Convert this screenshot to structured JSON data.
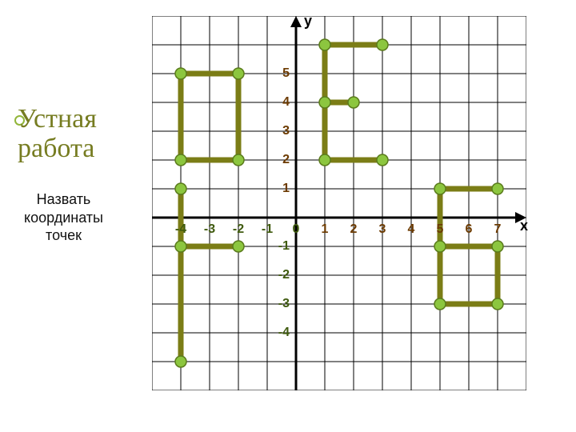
{
  "title_line1": "Устная",
  "title_line2": "работа",
  "subtitle": "Назвать координаты точек",
  "axis_x_label": "х",
  "axis_y_label": "у",
  "colors": {
    "grid_line": "#000000",
    "axis": "#000000",
    "shape_stroke": "#7b7d16",
    "point_fill": "#8cc63f",
    "point_stroke": "#5a7b1b",
    "tick_pos": "#6c3a00",
    "tick_neg": "#3f5a0e",
    "background": "#ffffff"
  },
  "grid": {
    "cell": 36,
    "x_min": -5,
    "x_max": 8,
    "y_min": -6,
    "y_max": 7
  },
  "ticks": {
    "x": [
      {
        "v": -4,
        "label": "-4",
        "color": "neg"
      },
      {
        "v": -3,
        "label": "-3",
        "color": "neg"
      },
      {
        "v": -2,
        "label": "-2",
        "color": "neg"
      },
      {
        "v": -1,
        "label": "-1",
        "color": "neg"
      },
      {
        "v": 0,
        "label": "0",
        "color": "neg"
      },
      {
        "v": 1,
        "label": "1",
        "color": "pos"
      },
      {
        "v": 2,
        "label": "2",
        "color": "pos"
      },
      {
        "v": 3,
        "label": "3",
        "color": "pos"
      },
      {
        "v": 4,
        "label": "4",
        "color": "pos"
      },
      {
        "v": 5,
        "label": "5",
        "color": "pos"
      },
      {
        "v": 6,
        "label": "6",
        "color": "pos"
      },
      {
        "v": 7,
        "label": "7",
        "color": "pos"
      }
    ],
    "y": [
      {
        "v": 1,
        "label": "1",
        "color": "pos"
      },
      {
        "v": 2,
        "label": "2",
        "color": "pos"
      },
      {
        "v": 3,
        "label": "3",
        "color": "pos"
      },
      {
        "v": 4,
        "label": "4",
        "color": "pos"
      },
      {
        "v": 5,
        "label": "5",
        "color": "pos"
      },
      {
        "v": -1,
        "label": "-1",
        "color": "neg"
      },
      {
        "v": -2,
        "label": "-2",
        "color": "neg"
      },
      {
        "v": -3,
        "label": "-3",
        "color": "neg"
      },
      {
        "v": -4,
        "label": "-4",
        "color": "neg"
      }
    ]
  },
  "shapes": [
    {
      "name": "letter-O",
      "closed": true,
      "points": [
        [
          -4,
          5
        ],
        [
          -2,
          5
        ],
        [
          -2,
          2
        ],
        [
          -4,
          2
        ]
      ]
    },
    {
      "name": "letter-E-top",
      "closed": false,
      "points": [
        [
          1,
          6
        ],
        [
          3,
          6
        ]
      ]
    },
    {
      "name": "letter-E-mid",
      "closed": false,
      "points": [
        [
          1,
          4
        ],
        [
          2,
          4
        ]
      ]
    },
    {
      "name": "letter-E-bot",
      "closed": false,
      "points": [
        [
          1,
          2
        ],
        [
          3,
          2
        ]
      ]
    },
    {
      "name": "letter-E-stem",
      "closed": false,
      "points": [
        [
          1,
          6
        ],
        [
          1,
          2
        ]
      ]
    },
    {
      "name": "letter-G",
      "closed": false,
      "points": [
        [
          -2,
          -1
        ],
        [
          -4,
          -1
        ],
        [
          -4,
          1
        ]
      ]
    },
    {
      "name": "letter-G-tail",
      "closed": false,
      "points": [
        [
          -4,
          -1
        ],
        [
          -4,
          -5
        ]
      ]
    },
    {
      "name": "letter-B-top",
      "closed": false,
      "points": [
        [
          7,
          1
        ],
        [
          5,
          1
        ],
        [
          5,
          -3
        ],
        [
          7,
          -3
        ],
        [
          7,
          -1
        ],
        [
          5,
          -1
        ]
      ]
    }
  ],
  "extra_points": [
    [
      -4,
      1
    ]
  ],
  "style": {
    "line_width": 7,
    "point_radius": 7,
    "grid_width": 1,
    "axis_width": 3
  }
}
